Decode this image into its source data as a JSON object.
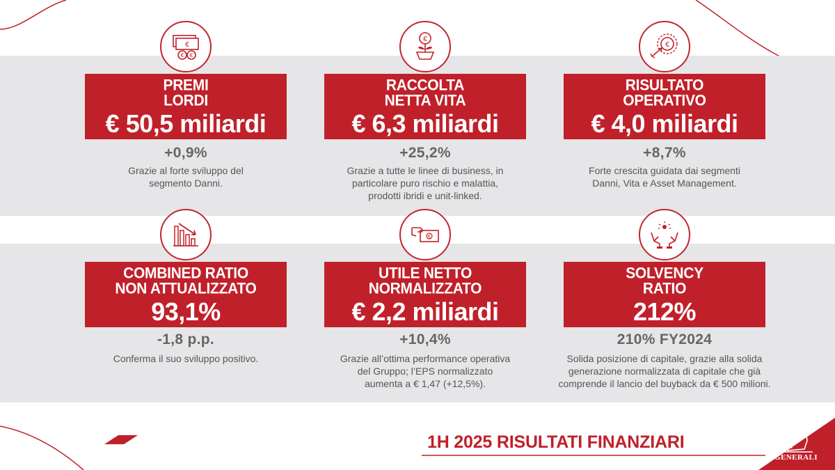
{
  "cards": [
    {
      "title_l1": "PREMI",
      "title_l2": "LORDI",
      "value": "€ 50,5 miliardi",
      "delta": "+0,9%",
      "note": [
        "Grazie al forte sviluppo del",
        "segmento Danni."
      ],
      "icon": "money-icon"
    },
    {
      "title_l1": "RACCOLTA",
      "title_l2": "NETTA VITA",
      "value": "€ 6,3 miliardi",
      "delta": "+25,2%",
      "note": [
        "Grazie a tutte le linee di business, in",
        "particolare puro rischio e malattia,",
        "prodotti ibridi e unit-linked."
      ],
      "icon": "plant-coin-icon"
    },
    {
      "title_l1": "RISULTATO",
      "title_l2": "OPERATIVO",
      "value": "€ 4,0 miliardi",
      "delta": "+8,7%",
      "note": [
        "Forte crescita guidata dai segmenti",
        "Danni, Vita e Asset Management."
      ],
      "icon": "target-coin-icon"
    },
    {
      "title_l1": "COMBINED RATIO",
      "title_l2": "NON ATTUALIZZATO",
      "value": "93,1%",
      "delta": "-1,8 p.p.",
      "note": [
        "Conferma il suo sviluppo positivo."
      ],
      "icon": "declining-chart-icon"
    },
    {
      "title_l1": "UTILE NETTO",
      "title_l2": "NORMALIZZATO",
      "value": "€ 2,2 miliardi",
      "delta": "+10,4%",
      "note": [
        "Grazie all’ottima performance operativa",
        "del Gruppo; l’EPS normalizzato",
        "aumenta a € 1,47 (+12,5%)."
      ],
      "icon": "hand-banknote-icon"
    },
    {
      "title_l1": "SOLVENCY",
      "title_l2": "RATIO",
      "value": "212%",
      "delta": "210% FY2024",
      "note": [
        "Solida posizione di capitale, grazie alla solida",
        "generazione normalizzata di capitale che già",
        "comprende il lancio del buyback da € 500 milioni."
      ],
      "icon": "hands-idea-icon"
    }
  ],
  "footer": {
    "title": "1H 2025 RISULTATI FINANZIARI",
    "brand": "GENERALI"
  },
  "colors": {
    "red": "#c0202a",
    "band": "#e6e6e8",
    "grey_text": "#666666"
  }
}
